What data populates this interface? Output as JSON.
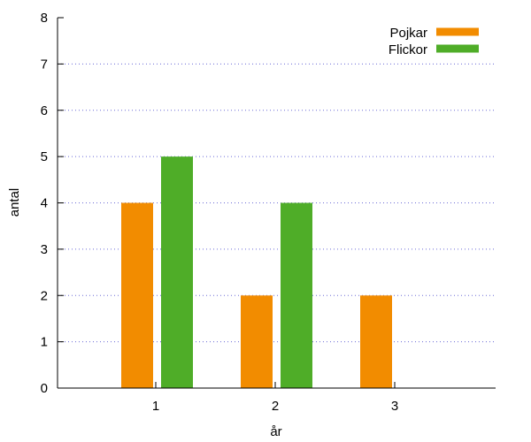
{
  "chart_data": {
    "type": "bar",
    "title": "",
    "xlabel": "år",
    "ylabel": "antal",
    "categories": [
      "1",
      "2",
      "3"
    ],
    "series": [
      {
        "name": "Pojkar",
        "values": [
          4,
          2,
          2
        ],
        "color": "#f28c00"
      },
      {
        "name": "Flickor",
        "values": [
          5,
          4,
          0
        ],
        "color": "#4fad28"
      }
    ],
    "ylim": [
      0,
      8
    ],
    "yticks": [
      "0",
      "1",
      "2",
      "3",
      "4",
      "5",
      "6",
      "7",
      "8"
    ],
    "grid": true,
    "legend_position": "top-right"
  }
}
